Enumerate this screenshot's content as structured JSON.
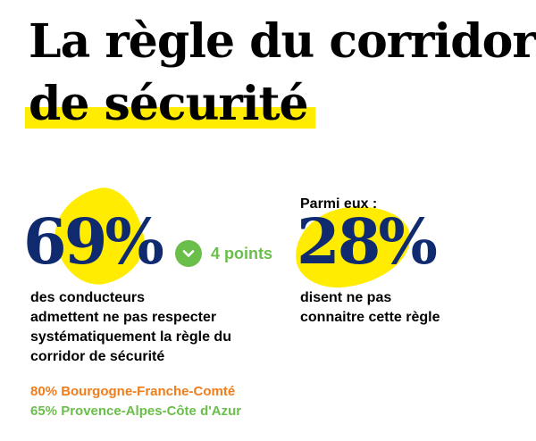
{
  "title": {
    "line1": "La règle du corridor",
    "line2": "de sécurité"
  },
  "stat_main": {
    "value": "69%",
    "description": [
      "des conducteurs",
      "admettent ne pas respecter",
      "systématiquement la règle du",
      "corridor de sécurité"
    ]
  },
  "trend": {
    "label": "4 points",
    "icon": "check-icon",
    "color": "#6abf4b"
  },
  "stat_secondary": {
    "intro": "Parmi eux :",
    "value": "28%",
    "description": [
      "disent ne pas",
      "connaitre cette règle"
    ]
  },
  "regions": [
    {
      "text": "80% Bourgogne-Franche-Comté",
      "color": "#f07d1a"
    },
    {
      "text": "65% Provence-Alpes-Côte d'Azur",
      "color": "#6abf4b"
    }
  ],
  "colors": {
    "highlight": "#ffec00",
    "stat_blue": "#0f2a6e"
  }
}
